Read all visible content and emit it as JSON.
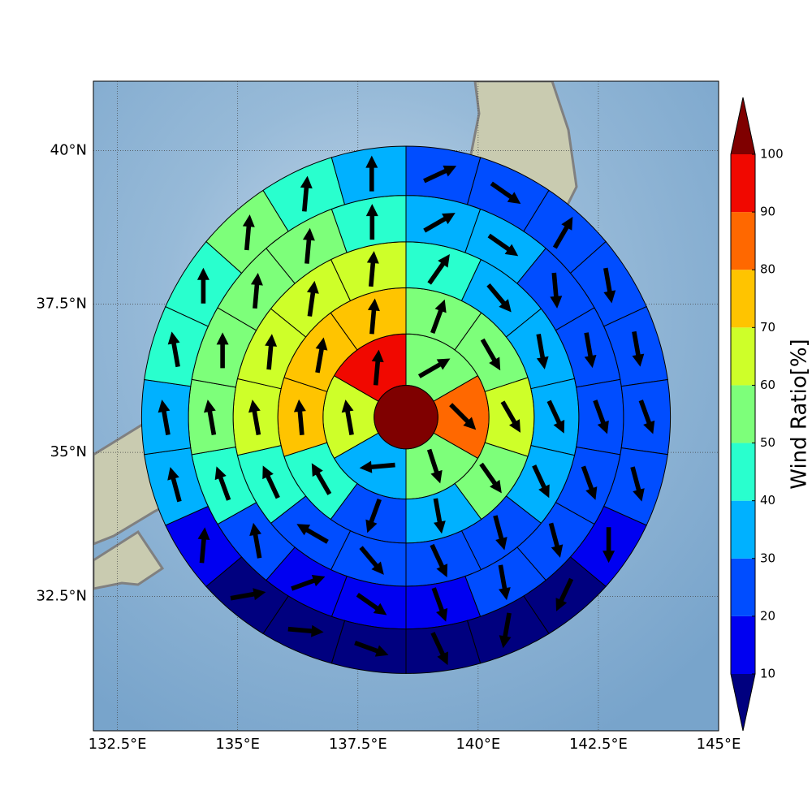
{
  "chart_data": {
    "type": "polar",
    "projection": "mercator",
    "xlim": [
      132,
      145
    ],
    "ylim": [
      30.1,
      41.1
    ],
    "xticks": [
      {
        "value": 132.5,
        "label": "132.5°E"
      },
      {
        "value": 135,
        "label": "135°E"
      },
      {
        "value": 137.5,
        "label": "137.5°E"
      },
      {
        "value": 140,
        "label": "140°E"
      },
      {
        "value": 142.5,
        "label": "142.5°E"
      },
      {
        "value": 145,
        "label": "145°E"
      }
    ],
    "yticks": [
      {
        "value": 32.5,
        "label": "32.5°N"
      },
      {
        "value": 35,
        "label": "35°N"
      },
      {
        "value": 37.5,
        "label": "37.5°N"
      },
      {
        "value": 40,
        "label": "40°N"
      }
    ],
    "grid": true,
    "center_value": 100,
    "rings": [
      {
        "values": [
          55,
          85,
          55,
          35,
          65,
          95
        ],
        "directions": [
          60,
          135,
          162,
          265,
          350,
          5
        ]
      },
      {
        "values": [
          55,
          55,
          65,
          55,
          35,
          25,
          45,
          75,
          75,
          75
        ],
        "directions": [
          20,
          150,
          150,
          145,
          170,
          200,
          330,
          355,
          10,
          5
        ]
      },
      {
        "values": [
          45,
          35,
          35,
          35,
          35,
          25,
          25,
          25,
          25,
          45,
          65,
          65,
          65,
          65
        ],
        "directions": [
          35,
          140,
          170,
          155,
          155,
          165,
          155,
          140,
          300,
          335,
          350,
          5,
          8,
          5
        ]
      },
      {
        "values": [
          35,
          35,
          25,
          25,
          25,
          25,
          25,
          25,
          15,
          15,
          15,
          25,
          45,
          55,
          55,
          55,
          55,
          45
        ],
        "directions": [
          60,
          125,
          175,
          170,
          160,
          160,
          165,
          170,
          160,
          125,
          70,
          350,
          340,
          350,
          0,
          5,
          5,
          0
        ]
      },
      {
        "values": [
          25,
          25,
          25,
          25,
          25,
          25,
          25,
          15,
          5,
          5,
          5,
          5,
          5,
          5,
          15,
          35,
          35,
          45,
          45,
          55,
          45,
          35
        ],
        "directions": [
          65,
          125,
          30,
          170,
          170,
          160,
          165,
          180,
          205,
          190,
          155,
          110,
          95,
          80,
          5,
          345,
          350,
          350,
          0,
          5,
          5,
          0
        ]
      }
    ],
    "colorbar": {
      "label": "Wind Ratio[%]",
      "levels": [
        10,
        20,
        30,
        40,
        50,
        60,
        70,
        80,
        90,
        100
      ],
      "colors": [
        "#00007f",
        "#0000f1",
        "#004dff",
        "#00b1ff",
        "#29ffce",
        "#7dff7a",
        "#ceff29",
        "#ffc400",
        "#ff6800",
        "#f10800",
        "#7f0000"
      ]
    }
  }
}
